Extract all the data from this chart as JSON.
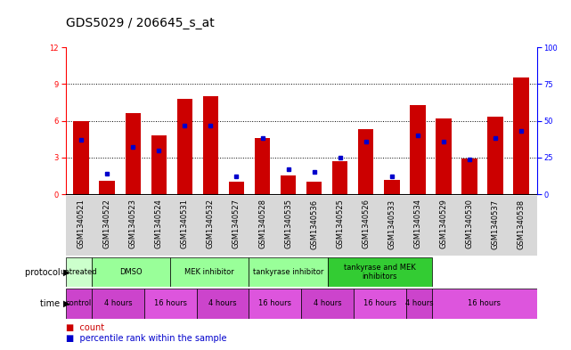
{
  "title": "GDS5029 / 206645_s_at",
  "samples": [
    "GSM1340521",
    "GSM1340522",
    "GSM1340523",
    "GSM1340524",
    "GSM1340531",
    "GSM1340532",
    "GSM1340527",
    "GSM1340528",
    "GSM1340535",
    "GSM1340536",
    "GSM1340525",
    "GSM1340526",
    "GSM1340533",
    "GSM1340534",
    "GSM1340529",
    "GSM1340530",
    "GSM1340537",
    "GSM1340538"
  ],
  "counts": [
    6.0,
    1.1,
    6.6,
    4.8,
    7.8,
    8.0,
    1.0,
    4.6,
    1.5,
    1.0,
    2.7,
    5.3,
    1.2,
    7.3,
    6.2,
    2.9,
    6.3,
    9.5
  ],
  "percentiles": [
    37,
    14,
    32,
    30,
    47,
    47,
    12,
    38,
    17,
    15,
    25,
    36,
    12,
    40,
    36,
    24,
    38,
    43
  ],
  "ylim_left": [
    0,
    12
  ],
  "ylim_right": [
    0,
    100
  ],
  "yticks_left": [
    0,
    3,
    6,
    9,
    12
  ],
  "yticks_right": [
    0,
    25,
    50,
    75,
    100
  ],
  "bar_color": "#cc0000",
  "dot_color": "#0000cc",
  "bg_color": "#ffffff",
  "xticklabel_bg": "#d8d8d8",
  "protocol_colors": [
    "#ccffcc",
    "#99ff99",
    "#99ff99",
    "#99ff99",
    "#33cc33"
  ],
  "time_colors": [
    "#cc44cc",
    "#cc44cc",
    "#dd55dd",
    "#cc44cc",
    "#dd55dd",
    "#cc44cc",
    "#dd55dd",
    "#cc44cc",
    "#dd55dd"
  ],
  "protocol_groups": [
    {
      "label": "untreated",
      "start": 0,
      "end": 2
    },
    {
      "label": "DMSO",
      "start": 2,
      "end": 8
    },
    {
      "label": "MEK inhibitor",
      "start": 8,
      "end": 14
    },
    {
      "label": "tankyrase inhibitor",
      "start": 14,
      "end": 20
    },
    {
      "label": "tankyrase and MEK\ninhibitors",
      "start": 20,
      "end": 28
    }
  ],
  "time_groups": [
    {
      "label": "control",
      "start": 0,
      "end": 2
    },
    {
      "label": "4 hours",
      "start": 2,
      "end": 6
    },
    {
      "label": "16 hours",
      "start": 6,
      "end": 10
    },
    {
      "label": "4 hours",
      "start": 10,
      "end": 14
    },
    {
      "label": "16 hours",
      "start": 14,
      "end": 18
    },
    {
      "label": "4 hours",
      "start": 18,
      "end": 22
    },
    {
      "label": "16 hours",
      "start": 22,
      "end": 26
    },
    {
      "label": "4 hours",
      "start": 26,
      "end": 28
    },
    {
      "label": "16 hours",
      "start": 28,
      "end": 36
    }
  ],
  "title_fontsize": 10,
  "tick_fontsize": 6,
  "legend_fontsize": 7
}
